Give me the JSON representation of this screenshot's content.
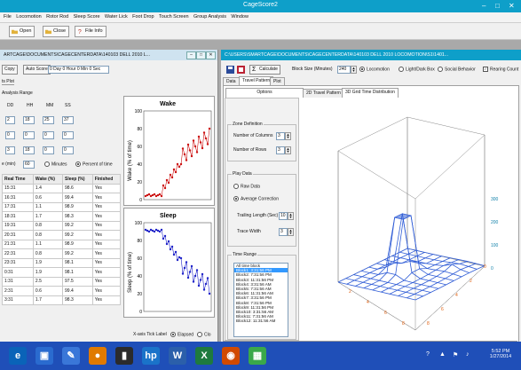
{
  "app": {
    "title": "CageScore2",
    "menu": [
      "File",
      "Locomotion",
      "Rotor Rod",
      "Sleep Score",
      "Water Lick",
      "Foot Drop",
      "Touch Screen",
      "Group Analysis",
      "Window"
    ],
    "toolbar": {
      "open": "Open",
      "close": "Close",
      "file_info": "File Info"
    }
  },
  "left_window": {
    "title": "ARTCAGE\\DOCUMENTS\\CAGECENTERDATA\\140103 DELL 2010 L...",
    "copy_button": "Copy",
    "auto_score_button": "Auto Score",
    "duration_field": "0 Day 0 Hour 0 Min 0 Sec",
    "tab_plot": "ts Plot",
    "analysis_range_label": "Analysis Range",
    "time_headers": [
      "DD",
      "HH",
      "MM",
      "SS"
    ],
    "rows": [
      [
        "2",
        "18",
        "25",
        "37"
      ],
      [
        "0",
        "0",
        "0",
        "0"
      ],
      [
        "3",
        "18",
        "0",
        "0"
      ]
    ],
    "bin_label": "e (min)",
    "bin_value": "60",
    "radio_minutes": "Minutes",
    "radio_percent": "Percent of time",
    "table_headers": [
      "Real Time",
      "Wake (%)",
      "Sleep (%)",
      "Finished"
    ],
    "table_rows": [
      [
        "15:31",
        "1.4",
        "98.6",
        "Yes"
      ],
      [
        "16:31",
        "0.6",
        "99.4",
        "Yes"
      ],
      [
        "17:31",
        "1.1",
        "98.9",
        "Yes"
      ],
      [
        "18:31",
        "1.7",
        "98.3",
        "Yes"
      ],
      [
        "19:31",
        "0.8",
        "99.2",
        "Yes"
      ],
      [
        "20:31",
        "0.8",
        "99.2",
        "Yes"
      ],
      [
        "21:31",
        "1.1",
        "98.9",
        "Yes"
      ],
      [
        "22:31",
        "0.8",
        "99.2",
        "Yes"
      ],
      [
        "23:31",
        "1.9",
        "98.1",
        "Yes"
      ],
      [
        "0:31",
        "1.9",
        "98.1",
        "Yes"
      ],
      [
        "1:31",
        "2.5",
        "97.5",
        "Yes"
      ],
      [
        "2:31",
        "0.6",
        "99.4",
        "Yes"
      ],
      [
        "3:31",
        "1.7",
        "98.3",
        "Yes"
      ]
    ],
    "wake_chart": {
      "title": "Wake",
      "ylabel": "Wake (% of time)",
      "yticks": [
        "100",
        "80",
        "60",
        "40",
        "20",
        "0"
      ]
    },
    "sleep_chart": {
      "title": "Sleep",
      "ylabel": "Sleep (% of time)",
      "yticks": [
        "100",
        "80",
        "60",
        "40",
        "20",
        "0"
      ]
    },
    "xaxis_tick_label": "X-axis Tick Label",
    "radio_elapsed": "Elapsed",
    "radio_clock": "Clo"
  },
  "right_window": {
    "title": "C:\\USERS\\SMARTCAGE\\DOCUMENTS\\CAGECENTERDATA\\140103 DELL 2010 LOCOMOTION\\S1\\1401...",
    "calculate_button": "Calculate",
    "bin_size_label": "Block Size (Minutes)",
    "bin_size_value": "240",
    "radio_locomotion": "Locomotion",
    "radio_lightdark": "Light/Dark Box",
    "radio_social": "Social Behavior",
    "check_rearing": "Rearing Count",
    "tabs": [
      "Data",
      "Travel Pattern",
      "Plot"
    ],
    "options_tab": "Options",
    "subtabs": [
      "2D Travel Pattern",
      "3D Grid Time Distribution"
    ],
    "zone_definition": {
      "title": "Zone Definition",
      "columns_label": "Number of Columns",
      "columns_value": "3",
      "rows_label": "Number of Rows",
      "rows_value": "3"
    },
    "play_data": {
      "title": "Play Data",
      "raw": "Raw Data",
      "average": "Average Correction",
      "trailing_label": "Trailing Length (Sec)",
      "trailing_value": "10",
      "trace_label": "Trace Width",
      "trace_value": "3"
    },
    "time_range": {
      "title": "Time Range",
      "items": [
        "All time block",
        "Block1: 3:31:56 PM",
        "Block2: 7:31:56 PM",
        "Block3: 11:31:56 PM",
        "Block4: 3:31:56 AM",
        "Block5: 7:31:56 AM",
        "Block6: 11:31:56 AM",
        "Block7: 3:31:56 PM",
        "Block8: 7:31:56 PM",
        "Block9: 11:31:56 PM",
        "Block10: 3:31:56 AM",
        "Block11: 7:31:56 AM",
        "Block12: 11:31:56 AM"
      ]
    },
    "plot3d": {
      "z_ticks": [
        "300",
        "200",
        "100",
        "0"
      ],
      "x_ticks": [
        "2",
        "4",
        "6",
        "8"
      ],
      "y_ticks": [
        "8",
        "6",
        "4",
        "2",
        "0"
      ]
    }
  },
  "taskbar": {
    "time": "5:52 PM",
    "date": "1/27/2014"
  },
  "colors": {
    "titlebar": "#0e9fc9",
    "wake_series": "#cc1111",
    "sleep_series": "#1e22c8",
    "surface": "#2f5cd6",
    "taskbar": "#1f4fb8"
  }
}
